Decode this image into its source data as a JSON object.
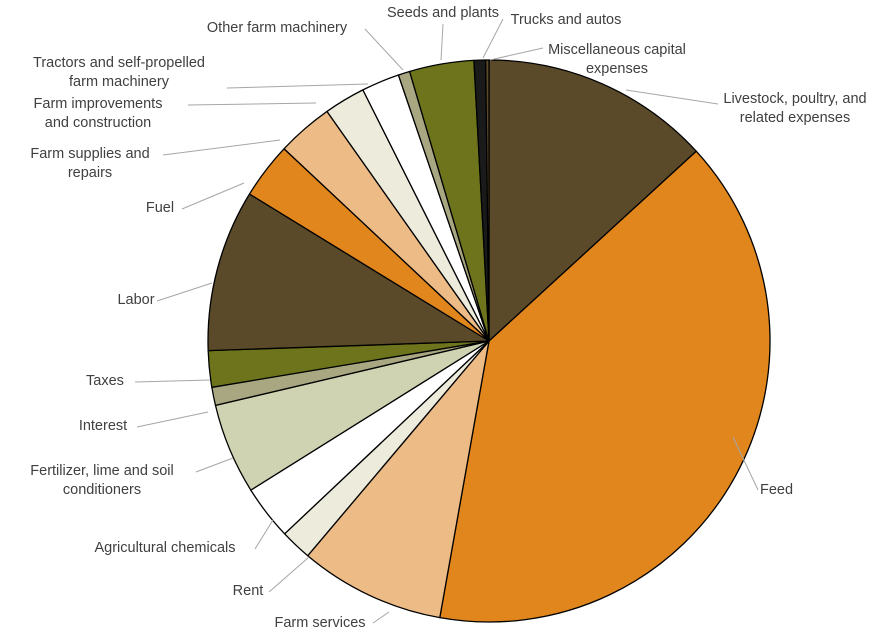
{
  "chart_data": {
    "type": "pie",
    "title": "",
    "legend": "none",
    "labels_shown": "category names with leader lines",
    "slices": [
      {
        "name": "Livestock, poultry, and related expenses",
        "value": 13.9,
        "color": "#5a4a2a"
      },
      {
        "name": "Feed",
        "value": 41.7,
        "color": "#e0861d"
      },
      {
        "name": "Farm services",
        "value": 8.8,
        "color": "#edbb86"
      },
      {
        "name": "Rent",
        "value": 1.9,
        "color": "#ecebdc"
      },
      {
        "name": "Agricultural chemicals",
        "value": 3.3,
        "color": "#ffffff"
      },
      {
        "name": "Fertilizer, lime and soil conditioners",
        "value": 5.5,
        "color": "#cfd3b1"
      },
      {
        "name": "Interest",
        "value": 1.1,
        "color": "#a9a781"
      },
      {
        "name": "Taxes",
        "value": 2.2,
        "color": "#6e741c"
      },
      {
        "name": "Labor",
        "value": 9.8,
        "color": "#5a4a2a"
      },
      {
        "name": "Fuel",
        "value": 3.4,
        "color": "#e0861d"
      },
      {
        "name": "Farm supplies and repairs",
        "value": 3.4,
        "color": "#edbb86"
      },
      {
        "name": "Farm improvements and construction",
        "value": 2.5,
        "color": "#ecebdc"
      },
      {
        "name": "Tractors and self-propelled farm machinery",
        "value": 2.3,
        "color": "#ffffff"
      },
      {
        "name": "Other farm machinery",
        "value": 0.7,
        "color": "#a9a781"
      },
      {
        "name": "Seeds and plants",
        "value": 3.9,
        "color": "#6e741c"
      },
      {
        "name": "Trucks and autos",
        "value": 0.7,
        "color": "#1a1a1a"
      },
      {
        "name": "Miscellaneous capital expenses",
        "value": 0.2,
        "color": "#5a4a2a"
      }
    ],
    "label_lines": [
      [
        "Livestock, poultry, and",
        "related expenses"
      ],
      [
        "Feed"
      ],
      [
        "Farm services"
      ],
      [
        "Rent"
      ],
      [
        "Agricultural chemicals"
      ],
      [
        "Fertilizer, lime and soil",
        "conditioners"
      ],
      [
        "Interest"
      ],
      [
        "Taxes"
      ],
      [
        "Labor"
      ],
      [
        "Fuel"
      ],
      [
        "Farm supplies and",
        "repairs"
      ],
      [
        "Farm improvements",
        "and construction"
      ],
      [
        "Tractors and self-propelled",
        "farm machinery"
      ],
      [
        "Other farm machinery"
      ],
      [
        "Seeds and plants"
      ],
      [
        "Trucks and autos"
      ],
      [
        "Miscellaneous capital",
        "expenses"
      ]
    ]
  }
}
